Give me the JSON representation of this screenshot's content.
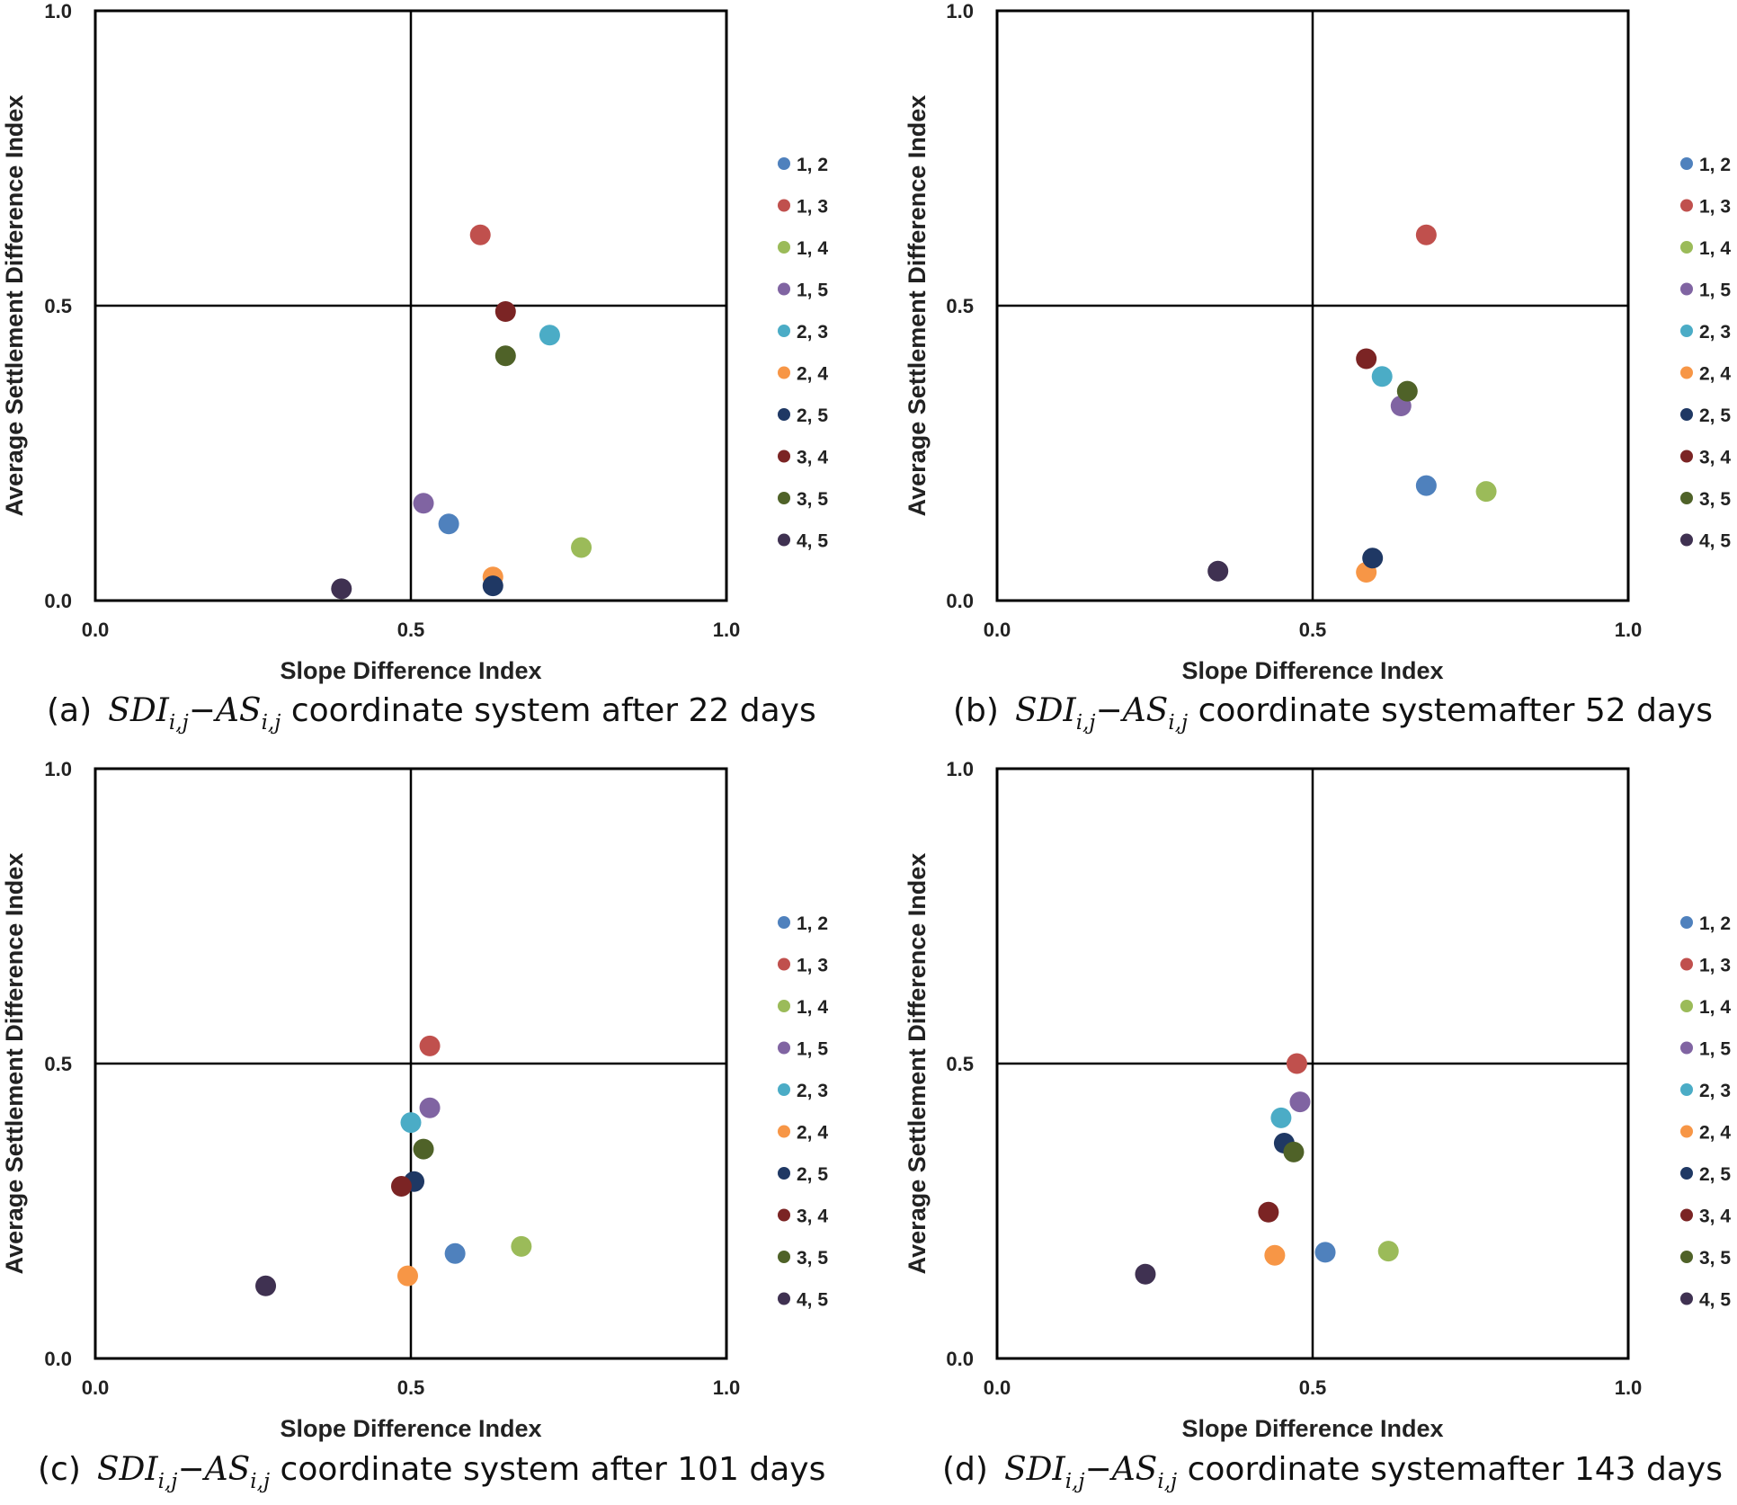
{
  "series_colors": {
    "1, 2": "#4F81BD",
    "1, 3": "#C0504D",
    "1, 4": "#9BBB59",
    "1, 5": "#8064A2",
    "2, 3": "#4BACC6",
    "2, 4": "#F79646",
    "2, 5": "#1F3864",
    "3, 4": "#7B2424",
    "3, 5": "#4F6228",
    "4, 5": "#3F3151"
  },
  "chart_data": [
    {
      "type": "scatter",
      "panel": "a",
      "caption": {
        "label": "(a)",
        "math_left": "SDI",
        "math_sub_left": "i,j",
        "math_op": "−",
        "math_right": "AS",
        "math_sub_right": "i,j",
        "text": "coordinate system after 22 days"
      },
      "xlabel": "Slope Difference Index",
      "ylabel": "Average Settlement Difference Index",
      "xlim": [
        0,
        1
      ],
      "ylim": [
        0,
        1
      ],
      "xticks": [
        "0.0",
        "0.5",
        "1.0"
      ],
      "yticks": [
        "0.0",
        "0.5",
        "1.0"
      ],
      "quadrant_lines": {
        "x": 0.5,
        "y": 0.5
      },
      "legend_position": "right",
      "legend_labels": [
        "1, 2",
        "1, 3",
        "1, 4",
        "1, 5",
        "2, 3",
        "2, 4",
        "2, 5",
        "3, 4",
        "3, 5",
        "4, 5"
      ],
      "series": [
        {
          "name": "1, 2",
          "x": 0.56,
          "y": 0.13
        },
        {
          "name": "1, 3",
          "x": 0.61,
          "y": 0.62
        },
        {
          "name": "1, 4",
          "x": 0.77,
          "y": 0.09
        },
        {
          "name": "1, 5",
          "x": 0.52,
          "y": 0.165
        },
        {
          "name": "2, 3",
          "x": 0.72,
          "y": 0.45
        },
        {
          "name": "2, 4",
          "x": 0.63,
          "y": 0.04
        },
        {
          "name": "2, 5",
          "x": 0.63,
          "y": 0.025
        },
        {
          "name": "3, 4",
          "x": 0.65,
          "y": 0.49
        },
        {
          "name": "3, 5",
          "x": 0.65,
          "y": 0.415
        },
        {
          "name": "4, 5",
          "x": 0.39,
          "y": 0.02
        }
      ]
    },
    {
      "type": "scatter",
      "panel": "b",
      "caption": {
        "label": "(b)",
        "math_left": "SDI",
        "math_sub_left": "i,j",
        "math_op": "−",
        "math_right": "AS",
        "math_sub_right": "i,j",
        "text": "coordinate systemafter 52 days"
      },
      "xlabel": "Slope Difference Index",
      "ylabel": "Average Settlement Difference Index",
      "xlim": [
        0,
        1
      ],
      "ylim": [
        0,
        1
      ],
      "xticks": [
        "0.0",
        "0.5",
        "1.0"
      ],
      "yticks": [
        "0.0",
        "0.5",
        "1.0"
      ],
      "quadrant_lines": {
        "x": 0.5,
        "y": 0.5
      },
      "legend_position": "right",
      "legend_labels": [
        "1, 2",
        "1, 3",
        "1, 4",
        "1, 5",
        "2, 3",
        "2, 4",
        "2, 5",
        "3, 4",
        "3, 5",
        "4, 5"
      ],
      "series": [
        {
          "name": "1, 2",
          "x": 0.68,
          "y": 0.195
        },
        {
          "name": "1, 3",
          "x": 0.68,
          "y": 0.62
        },
        {
          "name": "1, 4",
          "x": 0.775,
          "y": 0.185
        },
        {
          "name": "1, 5",
          "x": 0.64,
          "y": 0.33
        },
        {
          "name": "2, 3",
          "x": 0.61,
          "y": 0.38
        },
        {
          "name": "2, 4",
          "x": 0.585,
          "y": 0.048
        },
        {
          "name": "2, 5",
          "x": 0.595,
          "y": 0.072
        },
        {
          "name": "3, 4",
          "x": 0.585,
          "y": 0.41
        },
        {
          "name": "3, 5",
          "x": 0.65,
          "y": 0.355
        },
        {
          "name": "4, 5",
          "x": 0.35,
          "y": 0.05
        }
      ]
    },
    {
      "type": "scatter",
      "panel": "c",
      "caption": {
        "label": "(c)",
        "math_left": "SDI",
        "math_sub_left": "i,j",
        "math_op": "−",
        "math_right": "AS",
        "math_sub_right": "i,j",
        "text": "coordinate system after 101 days"
      },
      "xlabel": "Slope Difference Index",
      "ylabel": "Average Settlement Difference Index",
      "xlim": [
        0,
        1
      ],
      "ylim": [
        0,
        1
      ],
      "xticks": [
        "0.0",
        "0.5",
        "1.0"
      ],
      "yticks": [
        "0.0",
        "0.5",
        "1.0"
      ],
      "quadrant_lines": {
        "x": 0.5,
        "y": 0.5
      },
      "legend_position": "right",
      "legend_labels": [
        "1, 2",
        "1, 3",
        "1, 4",
        "1, 5",
        "2, 3",
        "2, 4",
        "2, 5",
        "3, 4",
        "3, 5",
        "4, 5"
      ],
      "series": [
        {
          "name": "1, 2",
          "x": 0.57,
          "y": 0.178
        },
        {
          "name": "1, 3",
          "x": 0.53,
          "y": 0.53
        },
        {
          "name": "1, 4",
          "x": 0.675,
          "y": 0.19
        },
        {
          "name": "1, 5",
          "x": 0.53,
          "y": 0.425
        },
        {
          "name": "2, 3",
          "x": 0.5,
          "y": 0.4
        },
        {
          "name": "2, 4",
          "x": 0.495,
          "y": 0.14
        },
        {
          "name": "2, 5",
          "x": 0.505,
          "y": 0.3
        },
        {
          "name": "3, 4",
          "x": 0.485,
          "y": 0.292
        },
        {
          "name": "3, 5",
          "x": 0.52,
          "y": 0.355
        },
        {
          "name": "4, 5",
          "x": 0.27,
          "y": 0.123
        }
      ]
    },
    {
      "type": "scatter",
      "panel": "d",
      "caption": {
        "label": "(d)",
        "math_left": "SDI",
        "math_sub_left": "i,j",
        "math_op": "−",
        "math_right": "AS",
        "math_sub_right": "i,j",
        "text": "coordinate systemafter 143 days"
      },
      "xlabel": "Slope Difference Index",
      "ylabel": "Average Settlement Difference Index",
      "xlim": [
        0,
        1
      ],
      "ylim": [
        0,
        1
      ],
      "xticks": [
        "0.0",
        "0.5",
        "1.0"
      ],
      "yticks": [
        "0.0",
        "0.5",
        "1.0"
      ],
      "quadrant_lines": {
        "x": 0.5,
        "y": 0.5
      },
      "legend_position": "right",
      "legend_labels": [
        "1, 2",
        "1, 3",
        "1, 4",
        "1, 5",
        "2, 3",
        "2, 4",
        "2, 5",
        "3, 4",
        "3, 5",
        "4, 5"
      ],
      "series": [
        {
          "name": "1, 2",
          "x": 0.52,
          "y": 0.18
        },
        {
          "name": "1, 3",
          "x": 0.475,
          "y": 0.5
        },
        {
          "name": "1, 4",
          "x": 0.62,
          "y": 0.182
        },
        {
          "name": "1, 5",
          "x": 0.48,
          "y": 0.435
        },
        {
          "name": "2, 3",
          "x": 0.45,
          "y": 0.408
        },
        {
          "name": "2, 4",
          "x": 0.44,
          "y": 0.175
        },
        {
          "name": "2, 5",
          "x": 0.455,
          "y": 0.365
        },
        {
          "name": "3, 4",
          "x": 0.43,
          "y": 0.248
        },
        {
          "name": "3, 5",
          "x": 0.47,
          "y": 0.35
        },
        {
          "name": "4, 5",
          "x": 0.235,
          "y": 0.143
        }
      ]
    }
  ]
}
